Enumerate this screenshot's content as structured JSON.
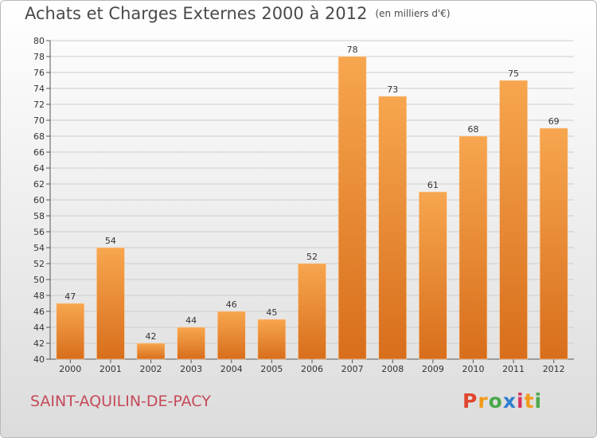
{
  "title": {
    "main": "Achats et Charges Externes 2000 à 2012",
    "unit": "(en milliers d'€)"
  },
  "commune": "SAINT-AQUILIN-DE-PACY",
  "logo": {
    "letters": [
      "P",
      "r",
      "o",
      "x",
      "i",
      "t",
      "i"
    ],
    "colors": [
      "#e0462e",
      "#f39a1b",
      "#4aa84a",
      "#2f7fd0",
      "#d6345f",
      "#f39a1b",
      "#4aa84a"
    ]
  },
  "colors": {
    "bar_light": "#f7a64f",
    "bar_dark": "#d86e1c",
    "grid": "#cccccc"
  },
  "chart_data": {
    "type": "bar",
    "title": "Achats et Charges Externes 2000 à 2012",
    "categories": [
      "2000",
      "2001",
      "2002",
      "2003",
      "2004",
      "2005",
      "2006",
      "2007",
      "2008",
      "2009",
      "2010",
      "2011",
      "2012"
    ],
    "values": [
      47,
      54,
      42,
      44,
      46,
      45,
      52,
      78,
      73,
      61,
      68,
      75,
      69
    ],
    "ylim": [
      40,
      80
    ],
    "yticks": [
      40,
      42,
      44,
      46,
      48,
      50,
      52,
      54,
      56,
      58,
      60,
      62,
      64,
      66,
      68,
      70,
      72,
      74,
      76,
      78,
      80
    ],
    "grid": true
  }
}
